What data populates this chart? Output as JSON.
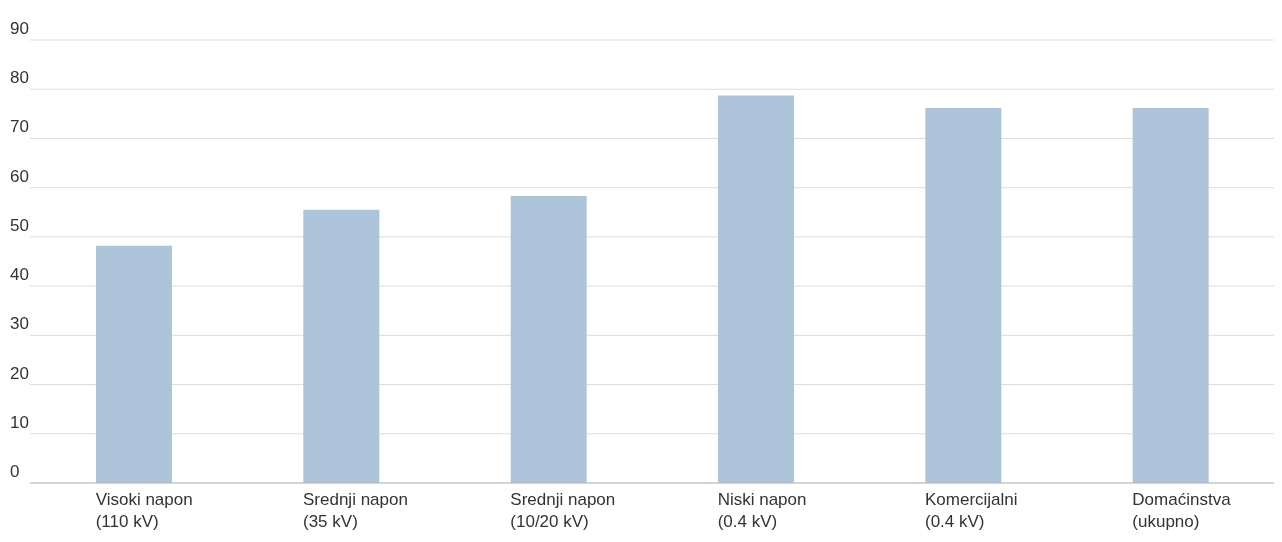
{
  "chart_data": {
    "type": "bar",
    "categories": [
      "Visoki napon (110 kV)",
      "Srednji napon (35 kV)",
      "Srednji napon (10/20 kV)",
      "Niski napon (0.4 kV)",
      "Komercijalni (0.4 kV)",
      "Domaćinstva (ukupno)"
    ],
    "values": [
      48.2,
      55.5,
      58.3,
      78.7,
      76.2,
      76.2
    ],
    "color": "#adc4da",
    "ylim": [
      0,
      90
    ],
    "yticks": [
      0,
      10,
      20,
      30,
      40,
      50,
      60,
      70,
      80,
      90
    ],
    "grid": "y",
    "legend": false
  }
}
